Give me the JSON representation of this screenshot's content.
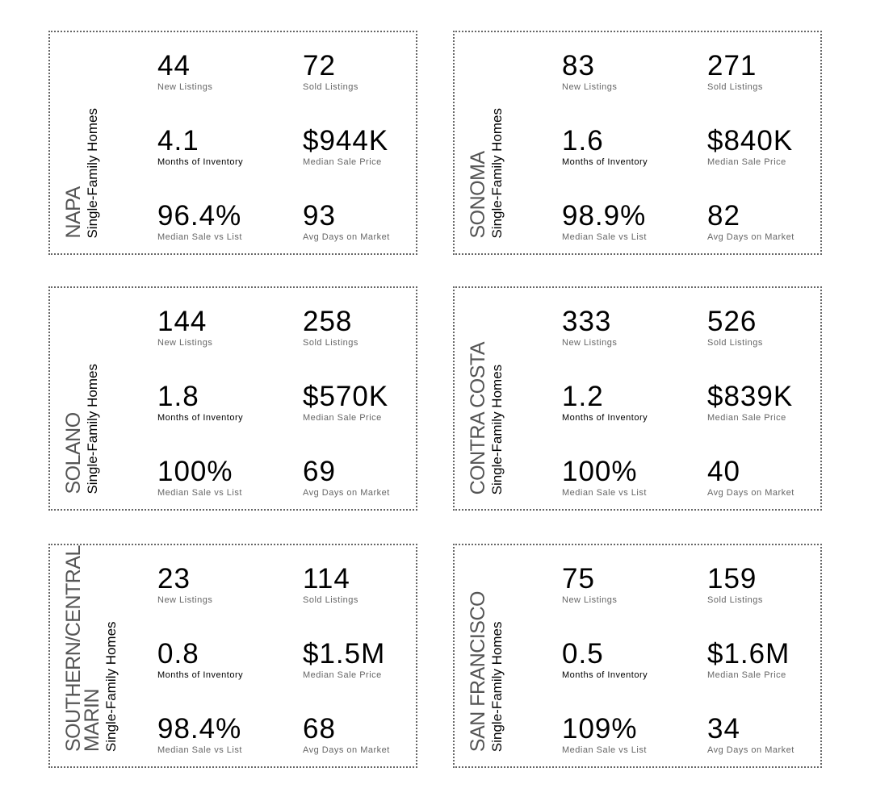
{
  "subtitle": "Single-Family Homes",
  "labels": {
    "new": "New Listings",
    "sold": "Sold Listings",
    "months": "Months of Inventory",
    "price": "Median Sale Price",
    "ratio": "Median Sale vs List",
    "days": "Avg Days on Market"
  },
  "cards": [
    {
      "region": [
        "NAPA"
      ],
      "new": "44",
      "sold": "72",
      "months": "4.1",
      "price": "$944K",
      "ratio": "96.4%",
      "days": "93"
    },
    {
      "region": [
        "SONOMA"
      ],
      "new": "83",
      "sold": "271",
      "months": "1.6",
      "price": "$840K",
      "ratio": "98.9%",
      "days": "82"
    },
    {
      "region": [
        "SOLANO"
      ],
      "new": "144",
      "sold": "258",
      "months": "1.8",
      "price": "$570K",
      "ratio": "100%",
      "days": "69"
    },
    {
      "region": [
        "CONTRA COSTA"
      ],
      "new": "333",
      "sold": "526",
      "months": "1.2",
      "price": "$839K",
      "ratio": "100%",
      "days": "40"
    },
    {
      "region": [
        "SOUTHERN/CENTRAL",
        "MARIN"
      ],
      "new": "23",
      "sold": "114",
      "months": "0.8",
      "price": "$1.5M",
      "ratio": "98.4%",
      "days": "68"
    },
    {
      "region": [
        "SAN FRANCISCO"
      ],
      "new": "75",
      "sold": "159",
      "months": "0.5",
      "price": "$1.6M",
      "ratio": "109%",
      "days": "34"
    }
  ]
}
